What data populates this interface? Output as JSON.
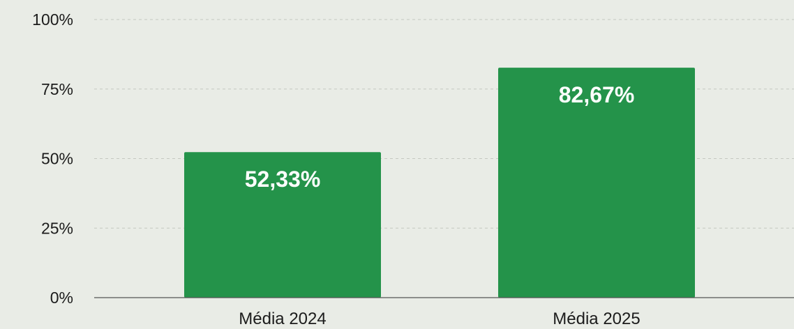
{
  "chart_data": {
    "type": "bar",
    "categories": [
      "Média 2024",
      "Média 2025"
    ],
    "values": [
      52.33,
      82.67
    ],
    "data_labels": [
      "52,33%",
      "82,67%"
    ],
    "ylim": [
      0,
      100
    ],
    "y_ticks": [
      0,
      25,
      50,
      75,
      100
    ],
    "y_tick_labels": [
      "0%",
      "25%",
      "50%",
      "75%",
      "100%"
    ],
    "title": "",
    "xlabel": "",
    "ylabel": "",
    "grid": true,
    "bar_color": "#24934a",
    "background_color": "#e9ece6"
  }
}
